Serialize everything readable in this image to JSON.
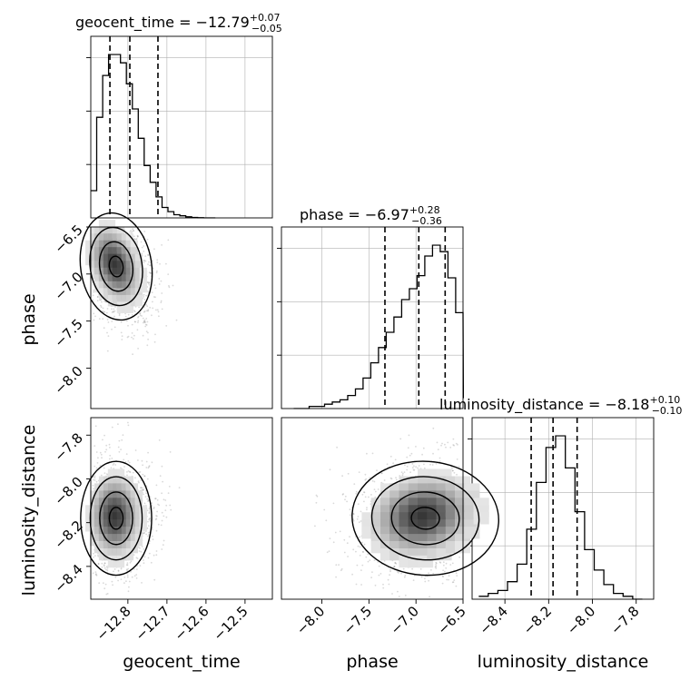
{
  "chart_data": {
    "type": "corner",
    "parameters": [
      {
        "name": "geocent_time",
        "title_name": "geocent_time",
        "title_value": "−12.79",
        "title_plus": "+0.07",
        "title_minus": "−0.05",
        "xlim": [
          -12.895,
          -12.43
        ],
        "tick_values": [
          -12.8,
          -12.7,
          -12.6,
          -12.5
        ],
        "tick_labels": [
          "−12.8",
          "−12.7",
          "−12.6",
          "−12.5"
        ],
        "quantiles": [
          -12.846,
          -12.795,
          -12.723
        ],
        "hist_step_values": [
          0.13,
          0.48,
          0.68,
          0.78,
          0.78,
          0.74,
          0.64,
          0.52,
          0.38,
          0.25,
          0.17,
          0.1,
          0.05,
          0.03,
          0.015,
          0.01,
          0.005,
          0.002,
          0.001,
          0.0,
          0.0
        ],
        "hist_bin_start": -12.895,
        "hist_bin_width": 0.0152
      },
      {
        "name": "phase",
        "title_name": "phase",
        "title_value": "−6.97",
        "title_plus": "+0.28",
        "title_minus": "−0.36",
        "xlim": [
          -8.43,
          -6.5
        ],
        "tick_values": [
          -8.0,
          -7.5,
          -7.0,
          -6.5
        ],
        "tick_labels": [
          "−8.0",
          "−7.5",
          "−7.0",
          "−6.5"
        ],
        "ytick_labels": [
          "−6.5",
          "−7.0",
          "−7.5",
          "−8.0"
        ],
        "quantiles": [
          -7.33,
          -6.97,
          -6.69
        ],
        "hist_step_values": [
          0.0,
          0.0,
          0.01,
          0.01,
          0.02,
          0.03,
          0.04,
          0.06,
          0.09,
          0.14,
          0.21,
          0.28,
          0.35,
          0.42,
          0.5,
          0.55,
          0.61,
          0.7,
          0.75,
          0.72,
          0.6,
          0.44,
          0.05
        ],
        "hist_bin_start": -8.3,
        "hist_bin_width": 0.082
      },
      {
        "name": "luminosity_distance",
        "title_name": "luminosity_distance",
        "title_value": "−8.18",
        "title_plus": "+0.10",
        "title_minus": "−0.10",
        "xlim": [
          -8.55,
          -7.72
        ],
        "tick_values": [
          -8.4,
          -8.2,
          -8.0,
          -7.8
        ],
        "tick_labels": [
          "−8.4",
          "−8.2",
          "−8.0",
          "−7.8"
        ],
        "ytick_labels": [
          "−7.8",
          "−8.0",
          "−8.2",
          "−8.4"
        ],
        "quantiles": [
          -8.28,
          -8.18,
          -8.07
        ],
        "hist_step_values": [
          0.01,
          0.02,
          0.03,
          0.06,
          0.12,
          0.24,
          0.4,
          0.52,
          0.56,
          0.45,
          0.3,
          0.17,
          0.1,
          0.05,
          0.02,
          0.01,
          0.0
        ],
        "hist_bin_start": -8.52,
        "hist_bin_width": 0.044
      }
    ],
    "contours": {
      "phase_vs_geocent_time": {
        "center": [
          -12.83,
          -6.92
        ],
        "spread": [
          0.035,
          0.22
        ],
        "description_points": "2D density mode near geocent_time −12.83, phase −6.92"
      },
      "luminosity_distance_vs_geocent_time": {
        "center": [
          -12.83,
          -8.18
        ],
        "spread": [
          0.035,
          0.1
        ]
      },
      "luminosity_distance_vs_phase": {
        "center": [
          -6.9,
          -8.18
        ],
        "spread": [
          0.3,
          0.1
        ]
      }
    },
    "grid": true
  }
}
